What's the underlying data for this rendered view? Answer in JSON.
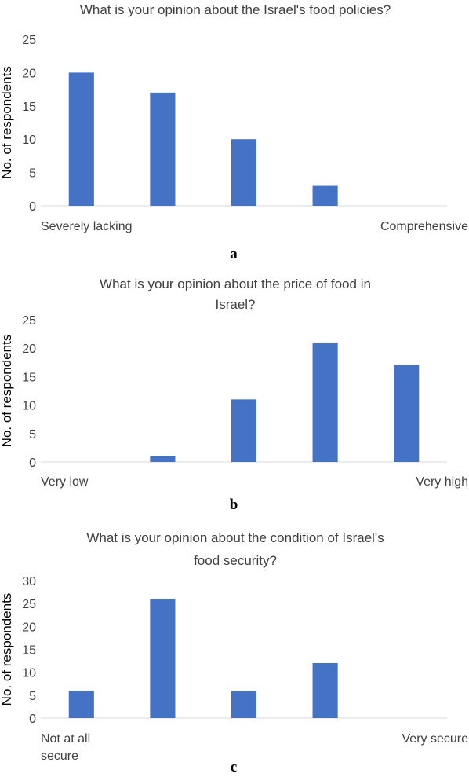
{
  "chart_data": [
    {
      "type": "bar",
      "title_lines": [
        "What is your opinion about the Israel's food policies?"
      ],
      "ylabel": "No. of respondents",
      "xlabel": "",
      "ylim": [
        0,
        25
      ],
      "yticks": [
        0,
        5,
        10,
        15,
        20,
        25
      ],
      "grid": false,
      "legend": "none",
      "color": "#4472C4",
      "categories": [
        "Severely lacking",
        "",
        "",
        "",
        "Comprehensive"
      ],
      "values": [
        20,
        17,
        10,
        3,
        0
      ],
      "panel_label": "a"
    },
    {
      "type": "bar",
      "title_lines": [
        "What is your opinion about the price of food in",
        "Israel?"
      ],
      "ylabel": "No. of respondents",
      "xlabel": "",
      "ylim": [
        0,
        25
      ],
      "yticks": [
        0,
        5,
        10,
        15,
        20,
        25
      ],
      "grid": false,
      "legend": "none",
      "color": "#4472C4",
      "categories": [
        "Very low",
        "",
        "",
        "",
        "Very high"
      ],
      "values": [
        0,
        1,
        11,
        21,
        17
      ],
      "panel_label": "b"
    },
    {
      "type": "bar",
      "title_lines": [
        "What is your opinion about the condition of Israel's",
        "food security?"
      ],
      "ylabel": "No. of respondents",
      "xlabel": "",
      "ylim": [
        0,
        30
      ],
      "yticks": [
        0,
        5,
        10,
        15,
        20,
        25,
        30
      ],
      "grid": false,
      "legend": "none",
      "color": "#4472C4",
      "categories": [
        "Not at all secure",
        "",
        "",
        "",
        "Very secure"
      ],
      "category_lines": [
        [
          "Not at all",
          "secure"
        ],
        [],
        [],
        [],
        [
          "Very secure"
        ]
      ],
      "values": [
        6,
        26,
        6,
        12,
        0
      ],
      "panel_label": "c"
    }
  ]
}
